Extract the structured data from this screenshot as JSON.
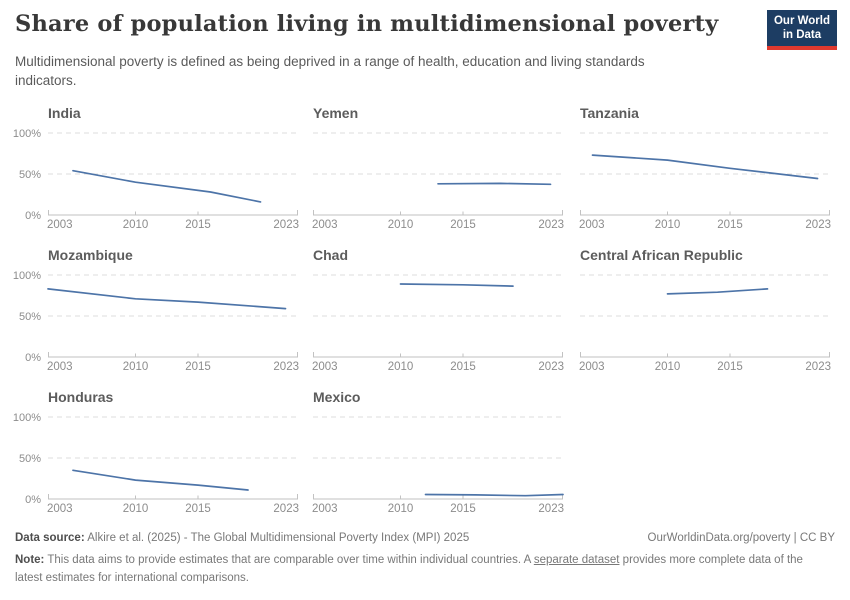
{
  "header": {
    "title": "Share of population living in multidimensional poverty",
    "subtitle": "Multidimensional poverty is defined as being deprived in a range of health, education and living standards indicators.",
    "logo": {
      "line1": "Our World",
      "line2": "in Data",
      "bg_color": "#1d3d63",
      "accent_color": "#e0392e"
    }
  },
  "chart_data": {
    "type": "line",
    "layout": "small-multiples",
    "title": "Share of population living in multidimensional poverty",
    "ylabel": "",
    "xlabel": "",
    "ylim": [
      0,
      100
    ],
    "x_range": [
      2003,
      2023
    ],
    "x_tick_labels": [
      "2003",
      "2010",
      "2015",
      "2023"
    ],
    "x_tick_years": [
      2003,
      2010,
      2015,
      2023
    ],
    "y_tick_labels": [
      "0%",
      "50%",
      "100%"
    ],
    "y_tick_values": [
      0,
      50,
      100
    ],
    "grid": "horizontal dashed at 50% and 100%, solid axis at 0%",
    "line_color": "#4d74a8",
    "grid_color": "#dcdcdc",
    "axis_color": "#c2c2c2",
    "tick_label_color": "#8c8c8c",
    "facets": [
      {
        "title": "India",
        "show_y_labels": true,
        "points": [
          [
            2005,
            54
          ],
          [
            2010,
            40
          ],
          [
            2016,
            28
          ],
          [
            2020,
            16
          ]
        ]
      },
      {
        "title": "Yemen",
        "show_y_labels": false,
        "points": [
          [
            2013,
            38
          ],
          [
            2018,
            38.5
          ],
          [
            2022,
            37.5
          ]
        ]
      },
      {
        "title": "Tanzania",
        "show_y_labels": false,
        "points": [
          [
            2004,
            73
          ],
          [
            2010,
            67
          ],
          [
            2015,
            57
          ],
          [
            2022,
            44.5
          ]
        ]
      },
      {
        "title": "Mozambique",
        "show_y_labels": true,
        "points": [
          [
            2003,
            83
          ],
          [
            2010,
            71
          ],
          [
            2015,
            67
          ],
          [
            2022,
            59
          ]
        ]
      },
      {
        "title": "Chad",
        "show_y_labels": false,
        "points": [
          [
            2010,
            89
          ],
          [
            2015,
            88
          ],
          [
            2019,
            86.5
          ]
        ]
      },
      {
        "title": "Central African Republic",
        "show_y_labels": false,
        "points": [
          [
            2010,
            77
          ],
          [
            2014,
            79
          ],
          [
            2018,
            83
          ]
        ]
      },
      {
        "title": "Honduras",
        "show_y_labels": true,
        "points": [
          [
            2005,
            35
          ],
          [
            2010,
            23
          ],
          [
            2015,
            17
          ],
          [
            2019,
            11
          ]
        ]
      },
      {
        "title": "Mexico",
        "show_y_labels": false,
        "points": [
          [
            2012,
            5.5
          ],
          [
            2016,
            5
          ],
          [
            2020,
            4
          ],
          [
            2023,
            5.5
          ]
        ]
      }
    ]
  },
  "footer": {
    "datasource_label": "Data source:",
    "datasource_text": " Alkire et al. (2025) - The Global Multidimensional Poverty Index (MPI) 2025",
    "rights": "OurWorldinData.org/poverty | CC BY",
    "note_label": "Note:",
    "note_before_link": " This data aims to provide estimates that are comparable over time within individual countries. A ",
    "note_link": "separate dataset",
    "note_after_link": " provides more complete data of the latest estimates for international comparisons."
  }
}
